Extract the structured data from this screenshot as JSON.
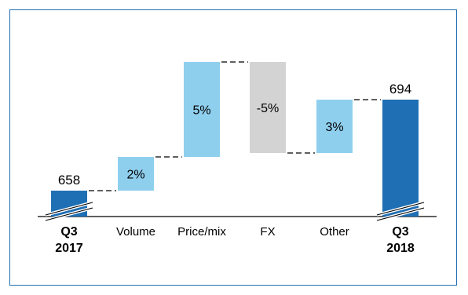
{
  "chart_data": {
    "type": "waterfall",
    "title": "",
    "categories": [
      "Q3\n2017",
      "Volume",
      "Price/mix",
      "FX",
      "Other",
      "Q3\n2018"
    ],
    "value_labels": [
      "658",
      "2%",
      "5%",
      "-5%",
      "3%",
      "694"
    ],
    "start_value": 658,
    "end_value": 694,
    "steps_percent": [
      2,
      5,
      -5,
      3
    ],
    "axis_break": true,
    "grid": false,
    "legend": "none",
    "colors": {
      "total": "#1f6fb4",
      "step_positive": "#8fcfee",
      "step_negative": "#d3d3d3",
      "connector": "#000000",
      "frame": "#1f6fb4"
    }
  }
}
